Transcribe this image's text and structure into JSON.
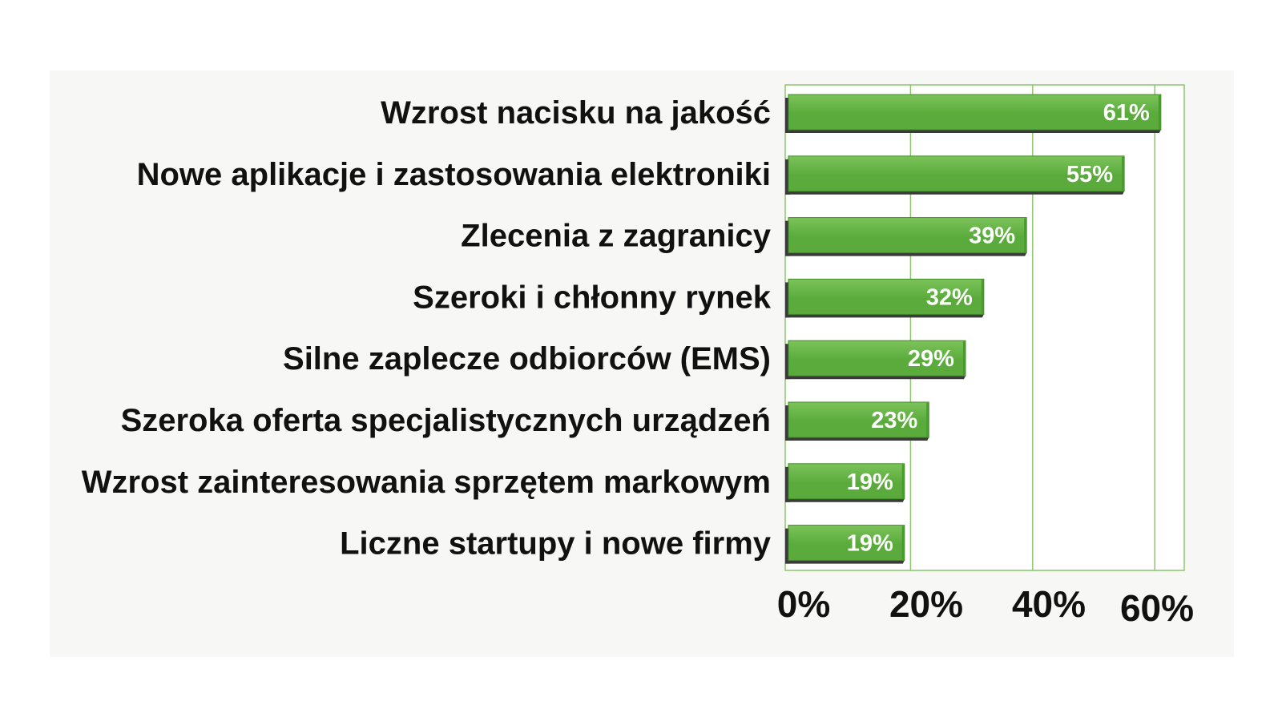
{
  "chart_data": {
    "type": "bar",
    "orientation": "horizontal",
    "categories": [
      "Wzrost nacisku na jakość",
      "Nowe aplikacje i zastosowania elektroniki",
      "Zlecenia z zagranicy",
      "Szeroki i chłonny rynek",
      "Silne zaplecze odbiorców (EMS)",
      "Szeroka oferta specjalistycznych urządzeń",
      "Wzrost zainteresowania sprzętem markowym",
      "Liczne startupy i nowe firmy"
    ],
    "values": [
      61,
      55,
      39,
      32,
      29,
      23,
      19,
      19
    ],
    "value_labels": [
      "61%",
      "55%",
      "39%",
      "32%",
      "29%",
      "23%",
      "19%",
      "19%"
    ],
    "x_ticks": [
      "0%",
      "20%",
      "40%",
      "60%"
    ],
    "x_tick_values": [
      0,
      20,
      40,
      60
    ],
    "xlim": [
      0,
      65
    ],
    "grid": true,
    "legend": "none",
    "bar_color": "#5aab3c",
    "bar_highlight_color": "#7cc35a",
    "bar_shadow_color": "#3a3a3a",
    "grid_color": "#8cc76a",
    "background_color": "#f7f7f5"
  }
}
